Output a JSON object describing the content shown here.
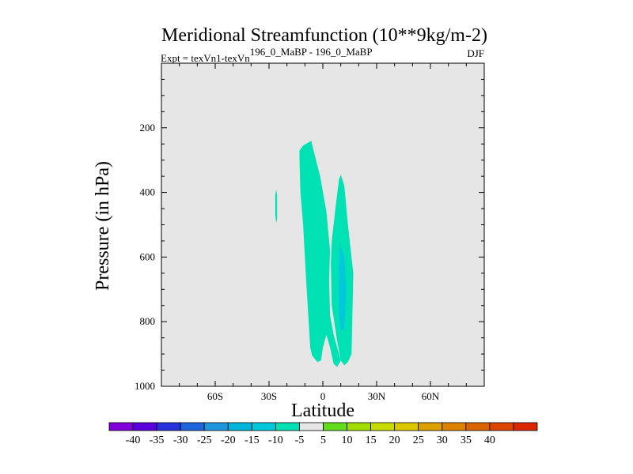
{
  "chart_data": {
    "type": "contour",
    "title": "Meridional Streamfunction (10**9kg/m-2)",
    "subtitle_left_prefix": "Expt = texVn1-texVn",
    "subtitle_left_superscript": "196_0_MaBP - 196_0_MaBP",
    "subtitle_right": "DJF",
    "xlabel": "Latitude",
    "ylabel": "Pressure (in hPa)",
    "xlim": [
      -90,
      90
    ],
    "ylim": [
      1000,
      0
    ],
    "x_ticks": [
      {
        "value": -60,
        "label": "60S"
      },
      {
        "value": -30,
        "label": "30S"
      },
      {
        "value": 0,
        "label": "0"
      },
      {
        "value": 30,
        "label": "30N"
      },
      {
        "value": 60,
        "label": "60N"
      }
    ],
    "y_ticks": [
      {
        "value": 200,
        "label": "200"
      },
      {
        "value": 400,
        "label": "400"
      },
      {
        "value": 600,
        "label": "600"
      },
      {
        "value": 800,
        "label": "800"
      },
      {
        "value": 1000,
        "label": "1000"
      }
    ],
    "background_fill_color": "#e6e6e6",
    "contour_regions": [
      {
        "name": "contour-region-south-sliver",
        "level": -5,
        "color": "#00e1b4",
        "points": [
          [
            -26,
            390
          ],
          [
            -25.5,
            410
          ],
          [
            -25.5,
            480
          ],
          [
            -26,
            495
          ],
          [
            -26.5,
            470
          ],
          [
            -26.5,
            410
          ]
        ]
      },
      {
        "name": "contour-region-main-cell",
        "level": -5,
        "color": "#00e1b4",
        "points": [
          [
            -13,
            270
          ],
          [
            -11,
            255
          ],
          [
            -6.5,
            240
          ],
          [
            -4.5,
            285
          ],
          [
            -1.5,
            350
          ],
          [
            2,
            460
          ],
          [
            4,
            580
          ],
          [
            3.5,
            670
          ],
          [
            4,
            780
          ],
          [
            6,
            840
          ],
          [
            10,
            920
          ],
          [
            8,
            940
          ],
          [
            6,
            930
          ],
          [
            4,
            880
          ],
          [
            2,
            840
          ],
          [
            0,
            880
          ],
          [
            -1,
            920
          ],
          [
            -3,
            925
          ],
          [
            -6,
            905
          ],
          [
            -7,
            880
          ],
          [
            -9,
            700
          ],
          [
            -10,
            600
          ],
          [
            -11,
            500
          ],
          [
            -12.5,
            400
          ],
          [
            -13,
            300
          ]
        ]
      },
      {
        "name": "contour-region-north-cell",
        "level": -5,
        "color": "#00e1b4",
        "points": [
          [
            9,
            360
          ],
          [
            10,
            345
          ],
          [
            12,
            380
          ],
          [
            14,
            500
          ],
          [
            17,
            650
          ],
          [
            16,
            900
          ],
          [
            14,
            925
          ],
          [
            12,
            935
          ],
          [
            10,
            920
          ],
          [
            8,
            860
          ],
          [
            5,
            750
          ],
          [
            4.5,
            620
          ],
          [
            5,
            550
          ],
          [
            7,
            450
          ]
        ]
      },
      {
        "name": "contour-region-north-core",
        "level": -10,
        "color": "#00c8dc",
        "points": [
          [
            9.5,
            560
          ],
          [
            12,
            600
          ],
          [
            13,
            700
          ],
          [
            12,
            820
          ],
          [
            10,
            830
          ],
          [
            9,
            780
          ],
          [
            9,
            650
          ]
        ]
      }
    ],
    "colorbar": {
      "colors": [
        "#8200dc",
        "#5a00dc",
        "#2832dc",
        "#1e64dc",
        "#1e96dc",
        "#00b4dc",
        "#00c8dc",
        "#00e1b4",
        "#e6e6e6",
        "#64dc1e",
        "#a0dc00",
        "#c8dc00",
        "#dcc800",
        "#dca000",
        "#dc8200",
        "#dc6400",
        "#dc4600",
        "#dc2800"
      ],
      "labels": [
        "-40",
        "-35",
        "-30",
        "-25",
        "-20",
        "-15",
        "-10",
        "-5",
        "5",
        "10",
        "15",
        "20",
        "25",
        "30",
        "35",
        "40"
      ]
    }
  }
}
